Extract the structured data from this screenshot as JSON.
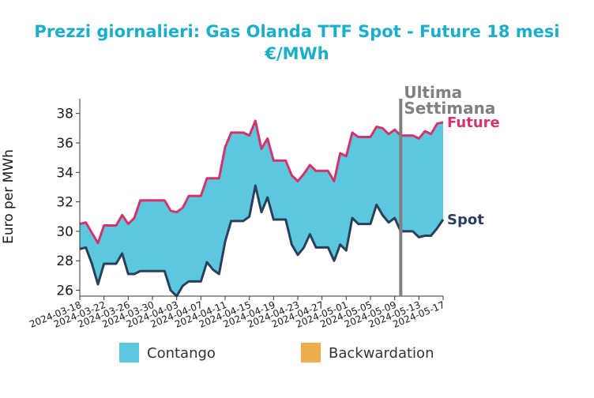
{
  "chart_data": {
    "type": "area",
    "title_line1": "Prezzi giornalieri: Gas Olanda TTF Spot - Future 18 mesi",
    "title_line2": "€/MWh",
    "ylabel": "Euro per MWh",
    "xlabel": "",
    "ylim": [
      25.6,
      39.0
    ],
    "yticks": [
      26,
      28,
      30,
      32,
      34,
      36,
      38
    ],
    "xticks": [
      "2024-03-18",
      "2024-03-22",
      "2024-03-26",
      "2024-03-30",
      "2024-04-03",
      "2024-04-07",
      "2024-04-11",
      "2024-04-15",
      "2024-04-19",
      "2024-04-23",
      "2024-04-27",
      "2024-05-01",
      "2024-05-05",
      "2024-05-09",
      "2024-05-13",
      "2024-05-17"
    ],
    "x": [
      "2024-03-18",
      "2024-03-19",
      "2024-03-20",
      "2024-03-21",
      "2024-03-22",
      "2024-03-23",
      "2024-03-24",
      "2024-03-25",
      "2024-03-26",
      "2024-03-27",
      "2024-03-28",
      "2024-03-29",
      "2024-03-30",
      "2024-03-31",
      "2024-04-01",
      "2024-04-02",
      "2024-04-03",
      "2024-04-04",
      "2024-04-05",
      "2024-04-06",
      "2024-04-07",
      "2024-04-08",
      "2024-04-09",
      "2024-04-10",
      "2024-04-11",
      "2024-04-12",
      "2024-04-13",
      "2024-04-14",
      "2024-04-15",
      "2024-04-16",
      "2024-04-17",
      "2024-04-18",
      "2024-04-19",
      "2024-04-20",
      "2024-04-21",
      "2024-04-22",
      "2024-04-23",
      "2024-04-24",
      "2024-04-25",
      "2024-04-26",
      "2024-04-27",
      "2024-04-28",
      "2024-04-29",
      "2024-04-30",
      "2024-05-01",
      "2024-05-02",
      "2024-05-03",
      "2024-05-04",
      "2024-05-05",
      "2024-05-06",
      "2024-05-07",
      "2024-05-08",
      "2024-05-09",
      "2024-05-10",
      "2024-05-11",
      "2024-05-12",
      "2024-05-13",
      "2024-05-14",
      "2024-05-15",
      "2024-05-16",
      "2024-05-17"
    ],
    "series": [
      {
        "name": "Future",
        "color": "#d6336c",
        "values": [
          30.5,
          30.6,
          29.9,
          29.2,
          30.4,
          30.4,
          30.4,
          31.1,
          30.5,
          30.9,
          32.1,
          32.1,
          32.1,
          32.1,
          32.1,
          31.4,
          31.3,
          31.6,
          32.4,
          32.4,
          32.4,
          33.6,
          33.6,
          33.6,
          35.7,
          36.7,
          36.7,
          36.7,
          36.5,
          37.5,
          35.6,
          36.3,
          34.8,
          34.8,
          34.8,
          33.8,
          33.4,
          33.9,
          34.5,
          34.1,
          34.1,
          34.1,
          33.4,
          35.3,
          35.1,
          36.7,
          36.4,
          36.4,
          36.4,
          37.1,
          37.0,
          36.6,
          36.9,
          36.5,
          36.5,
          36.5,
          36.3,
          36.8,
          36.6,
          37.3,
          37.4
        ]
      },
      {
        "name": "Spot",
        "color": "#2b3f5c",
        "values": [
          28.8,
          28.9,
          27.8,
          26.4,
          27.8,
          27.8,
          27.8,
          28.5,
          27.1,
          27.1,
          27.3,
          27.3,
          27.3,
          27.3,
          27.3,
          26.0,
          25.6,
          26.3,
          26.6,
          26.6,
          26.6,
          27.9,
          27.4,
          27.1,
          29.3,
          30.7,
          30.7,
          30.7,
          31.0,
          33.1,
          31.3,
          32.3,
          30.8,
          30.8,
          30.8,
          29.1,
          28.4,
          28.9,
          29.8,
          28.9,
          28.9,
          28.9,
          28.0,
          29.1,
          28.7,
          30.9,
          30.5,
          30.5,
          30.5,
          31.8,
          31.1,
          30.6,
          30.9,
          30.0,
          30.0,
          30.0,
          29.6,
          29.7,
          29.7,
          30.2,
          30.8
        ]
      }
    ],
    "annotation": {
      "line1": "Ultima",
      "line2": "Settimana",
      "x": "2024-05-10"
    },
    "legend": {
      "position": "bottom",
      "items": [
        {
          "label": "Contango",
          "color": "#5bc8de"
        },
        {
          "label": "Backwardation",
          "color": "#f0ad4e"
        }
      ]
    },
    "colors": {
      "fill": "#5bc8de",
      "title": "#1aaecb",
      "annotation_line": "#808080"
    },
    "grid": false
  }
}
